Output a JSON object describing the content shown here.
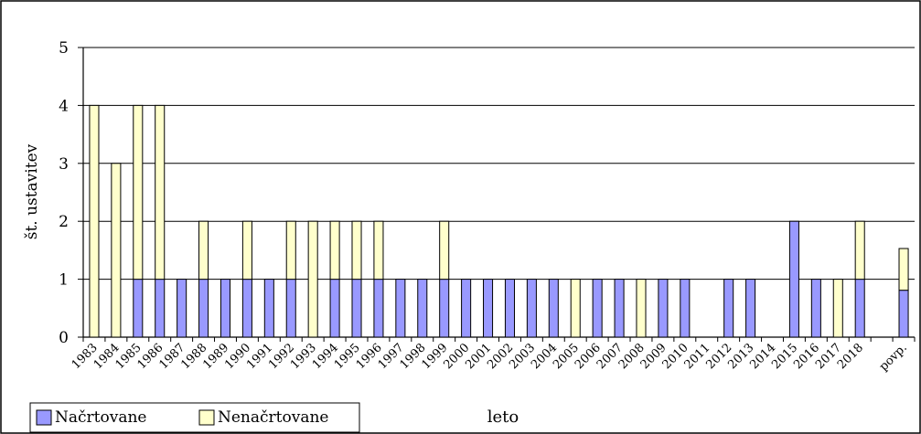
{
  "chart_data": {
    "type": "bar",
    "stacked": true,
    "title": "",
    "xlabel": "leto",
    "ylabel": "št. ustavitev",
    "ylim": [
      0,
      5
    ],
    "yticks": [
      0,
      1,
      2,
      3,
      4,
      5
    ],
    "grid": true,
    "legend_position": "bottom-left",
    "categories": [
      "1983",
      "1984",
      "1985",
      "1986",
      "1987",
      "1988",
      "1989",
      "1990",
      "1991",
      "1992",
      "1993",
      "1994",
      "1995",
      "1996",
      "1997",
      "1998",
      "1999",
      "2000",
      "2001",
      "2002",
      "2003",
      "2004",
      "2005",
      "2006",
      "2007",
      "2008",
      "2009",
      "2010",
      "2011",
      "2012",
      "2013",
      "2014",
      "2015",
      "2016",
      "2017",
      "2018",
      "",
      "povp."
    ],
    "series": [
      {
        "name": "Načrtovane",
        "color": "#9999ff",
        "values": [
          0,
          0,
          1,
          1,
          1,
          1,
          1,
          1,
          1,
          1,
          0,
          1,
          1,
          1,
          1,
          1,
          1,
          1,
          1,
          1,
          1,
          1,
          0,
          1,
          1,
          0,
          1,
          1,
          0,
          1,
          1,
          0,
          2,
          1,
          0,
          1,
          0,
          0.81
        ]
      },
      {
        "name": "Nenačrtovane",
        "color": "#ffffcc",
        "values": [
          4,
          3,
          3,
          3,
          0,
          1,
          0,
          1,
          0,
          1,
          2,
          1,
          1,
          1,
          0,
          0,
          1,
          0,
          0,
          0,
          0,
          0,
          1,
          0,
          0,
          1,
          0,
          0,
          0,
          0,
          0,
          0,
          0,
          0,
          1,
          1,
          0,
          0.72
        ]
      }
    ]
  }
}
